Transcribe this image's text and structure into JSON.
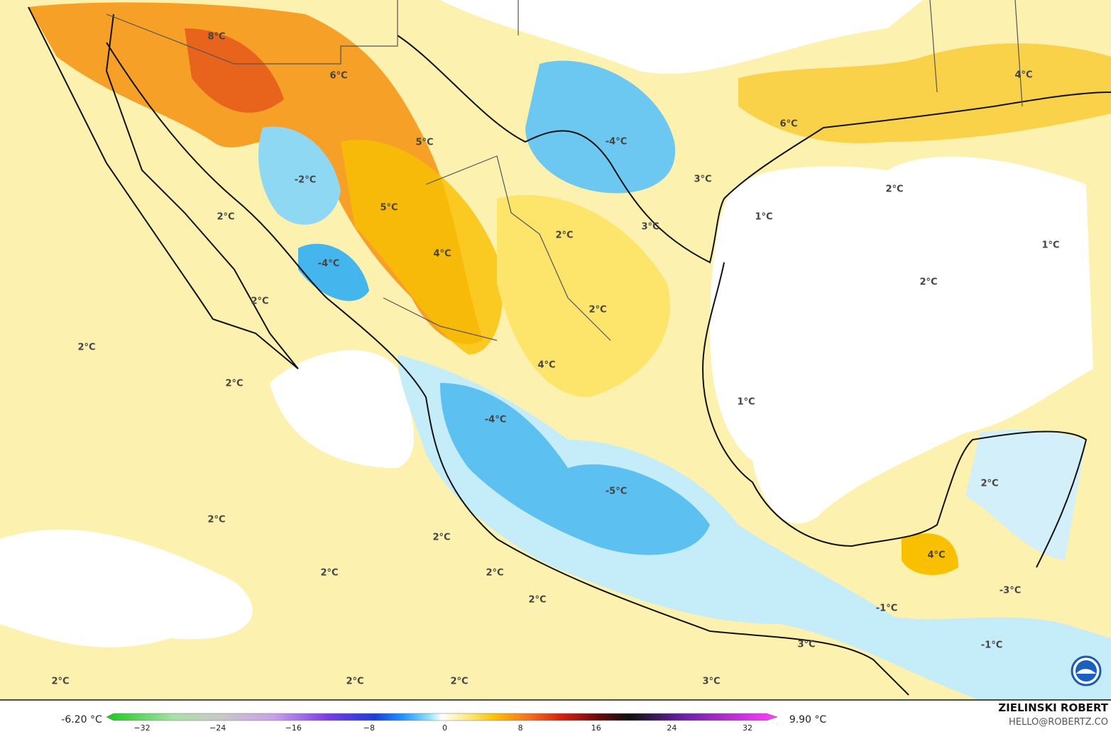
{
  "map": {
    "labels": [
      "8°C",
      "6°C",
      "5°C",
      "-2°C",
      "5°C",
      "2°C",
      "-4°C",
      "4°C",
      "2°C",
      "2°C",
      "2°C",
      "2°C",
      "4°C",
      "-4°C",
      "3°C",
      "2°C",
      "3°C",
      "6°C",
      "4°C",
      "2°C",
      "1°C",
      "1°C",
      "2°C",
      "1°C",
      "-4°C",
      "-5°C",
      "2°C",
      "4°C",
      "-3°C",
      "-1°C",
      "-1°C",
      "3°C",
      "2°C",
      "2°C",
      "2°C",
      "2°C",
      "2°C",
      "2°C",
      "2°C",
      "2°C",
      "3°C"
    ]
  },
  "colorbar": {
    "min_label": "-6.20 °C",
    "max_label": "9.90 °C",
    "ticks": [
      "−32",
      "−24",
      "−16",
      "−8",
      "0",
      "8",
      "16",
      "24",
      "32"
    ]
  },
  "credit": {
    "author": "ZIELINSKI ROBERT",
    "email": "HELLO@ROBERTZ.CO"
  }
}
